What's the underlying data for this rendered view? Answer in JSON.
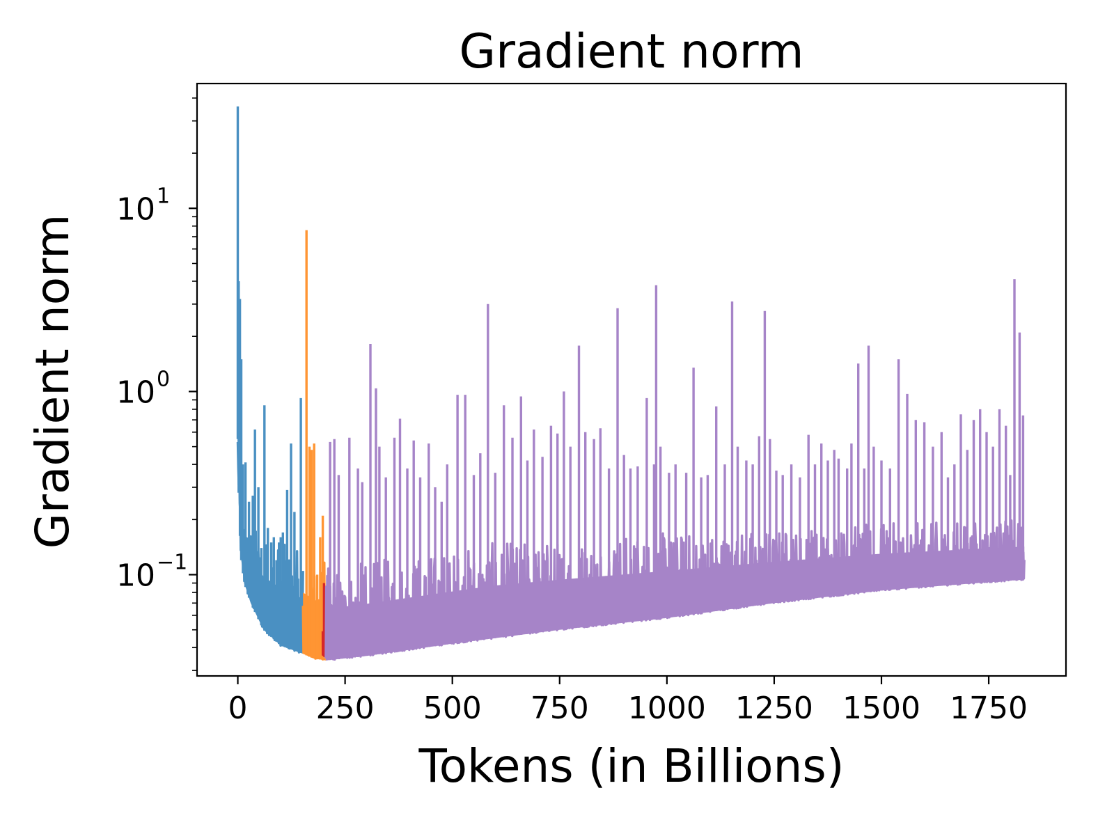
{
  "chart_data": {
    "type": "line",
    "title": "Gradient norm",
    "xlabel": "Tokens (in Billions)",
    "ylabel": "Gradient norm",
    "yscale": "log",
    "xlim": [
      -95,
      1930
    ],
    "ylim": [
      0.028,
      48
    ],
    "grid": false,
    "legend": "none",
    "x_ticks": [
      0,
      250,
      500,
      750,
      1000,
      1250,
      1500,
      1750
    ],
    "x_tick_labels": [
      "0",
      "250",
      "500",
      "750",
      "1000",
      "1250",
      "1500",
      "1750"
    ],
    "y_ticks": [
      {
        "value": 10,
        "base": "10",
        "exp": "1"
      },
      {
        "value": 1,
        "base": "10",
        "exp": "0"
      },
      {
        "value": 0.1,
        "base": "10",
        "exp": "−1"
      }
    ],
    "series": [
      {
        "color": "#4a90c2",
        "x_range": [
          0,
          152
        ],
        "floor": [
          [
            0,
            0.55
          ],
          [
            3,
            0.2
          ],
          [
            8,
            0.12
          ],
          [
            15,
            0.09
          ],
          [
            30,
            0.07
          ],
          [
            60,
            0.05
          ],
          [
            100,
            0.041
          ],
          [
            152,
            0.037
          ]
        ],
        "upper": [
          [
            0,
            0.5
          ],
          [
            20,
            0.2
          ],
          [
            60,
            0.17
          ],
          [
            152,
            0.13
          ]
        ],
        "spikes": [
          [
            0,
            36
          ],
          [
            2,
            4.0
          ],
          [
            5,
            3.2
          ],
          [
            8,
            1.5
          ],
          [
            12,
            0.4
          ],
          [
            18,
            0.41
          ],
          [
            26,
            0.25
          ],
          [
            35,
            0.27
          ],
          [
            40,
            0.62
          ],
          [
            48,
            0.3
          ],
          [
            55,
            0.14
          ],
          [
            62,
            0.84
          ],
          [
            70,
            0.18
          ],
          [
            78,
            0.15
          ],
          [
            84,
            0.16
          ],
          [
            90,
            0.12
          ],
          [
            96,
            0.15
          ],
          [
            100,
            0.16
          ],
          [
            105,
            0.17
          ],
          [
            110,
            0.12
          ],
          [
            115,
            0.29
          ],
          [
            124,
            0.52
          ],
          [
            132,
            0.22
          ],
          [
            140,
            0.07
          ],
          [
            147,
            0.92
          ]
        ]
      },
      {
        "color": "#ff9533",
        "x_range": [
          152,
          205
        ],
        "floor": [
          [
            152,
            0.037
          ],
          [
            175,
            0.035
          ],
          [
            205,
            0.034
          ]
        ],
        "upper": [
          [
            152,
            0.15
          ],
          [
            205,
            0.12
          ]
        ],
        "spikes": [
          [
            160,
            7.6
          ],
          [
            167,
            0.5
          ],
          [
            172,
            0.48
          ],
          [
            178,
            0.52
          ],
          [
            185,
            0.1
          ],
          [
            192,
            0.16
          ],
          [
            198,
            0.21
          ]
        ]
      },
      {
        "color": "#d62728",
        "x_range": [
          198,
          208
        ],
        "floor": [
          [
            198,
            0.036
          ],
          [
            208,
            0.036
          ]
        ],
        "upper": [
          [
            198,
            0.05
          ],
          [
            208,
            0.05
          ]
        ],
        "spikes": [
          [
            201,
            0.09
          ],
          [
            205,
            0.05
          ]
        ]
      },
      {
        "color": "#a684c8",
        "x_range": [
          205,
          1833
        ],
        "floor": [
          [
            205,
            0.034
          ],
          [
            300,
            0.036
          ],
          [
            500,
            0.042
          ],
          [
            750,
            0.05
          ],
          [
            1000,
            0.058
          ],
          [
            1250,
            0.07
          ],
          [
            1500,
            0.082
          ],
          [
            1750,
            0.091
          ],
          [
            1833,
            0.094
          ]
        ],
        "upper": [
          [
            205,
            0.11
          ],
          [
            600,
            0.15
          ],
          [
            1000,
            0.17
          ],
          [
            1500,
            0.19
          ],
          [
            1833,
            0.2
          ]
        ],
        "spikes": [
          [
            215,
            0.53
          ],
          [
            225,
            0.55
          ],
          [
            235,
            0.35
          ],
          [
            260,
            0.56
          ],
          [
            280,
            0.38
          ],
          [
            290,
            0.32
          ],
          [
            309,
            1.82
          ],
          [
            322,
            1.04
          ],
          [
            330,
            0.5
          ],
          [
            345,
            0.34
          ],
          [
            365,
            0.56
          ],
          [
            378,
            0.71
          ],
          [
            395,
            0.38
          ],
          [
            410,
            0.54
          ],
          [
            425,
            0.34
          ],
          [
            445,
            0.52
          ],
          [
            460,
            0.3
          ],
          [
            475,
            0.25
          ],
          [
            488,
            0.4
          ],
          [
            512,
            0.96
          ],
          [
            530,
            0.96
          ],
          [
            550,
            0.35
          ],
          [
            565,
            0.46
          ],
          [
            583,
            3.0
          ],
          [
            600,
            0.36
          ],
          [
            620,
            0.84
          ],
          [
            640,
            0.56
          ],
          [
            660,
            0.94
          ],
          [
            675,
            0.42
          ],
          [
            690,
            0.62
          ],
          [
            710,
            0.44
          ],
          [
            730,
            0.65
          ],
          [
            745,
            0.59
          ],
          [
            760,
            1.0
          ],
          [
            775,
            0.5
          ],
          [
            795,
            1.78
          ],
          [
            810,
            0.6
          ],
          [
            830,
            0.55
          ],
          [
            845,
            0.63
          ],
          [
            865,
            0.38
          ],
          [
            885,
            2.85
          ],
          [
            900,
            0.45
          ],
          [
            915,
            0.38
          ],
          [
            932,
            0.39
          ],
          [
            953,
            0.92
          ],
          [
            970,
            0.4
          ],
          [
            975,
            3.8
          ],
          [
            985,
            0.5
          ],
          [
            1005,
            0.36
          ],
          [
            1020,
            0.4
          ],
          [
            1045,
            0.36
          ],
          [
            1062,
            1.35
          ],
          [
            1080,
            0.34
          ],
          [
            1095,
            0.35
          ],
          [
            1115,
            0.83
          ],
          [
            1135,
            0.4
          ],
          [
            1152,
            3.1
          ],
          [
            1165,
            0.5
          ],
          [
            1185,
            0.42
          ],
          [
            1200,
            0.4
          ],
          [
            1215,
            0.57
          ],
          [
            1228,
            2.75
          ],
          [
            1240,
            0.55
          ],
          [
            1255,
            0.37
          ],
          [
            1270,
            0.35
          ],
          [
            1290,
            0.4
          ],
          [
            1310,
            0.34
          ],
          [
            1330,
            0.58
          ],
          [
            1345,
            0.4
          ],
          [
            1360,
            0.52
          ],
          [
            1375,
            0.42
          ],
          [
            1390,
            0.48
          ],
          [
            1400,
            0.43
          ],
          [
            1420,
            0.38
          ],
          [
            1430,
            0.52
          ],
          [
            1446,
            1.42
          ],
          [
            1460,
            0.38
          ],
          [
            1470,
            1.78
          ],
          [
            1482,
            0.5
          ],
          [
            1500,
            0.42
          ],
          [
            1520,
            0.38
          ],
          [
            1540,
            1.5
          ],
          [
            1560,
            0.97
          ],
          [
            1580,
            0.7
          ],
          [
            1600,
            0.68
          ],
          [
            1620,
            0.5
          ],
          [
            1640,
            0.6
          ],
          [
            1655,
            0.34
          ],
          [
            1670,
            0.4
          ],
          [
            1685,
            0.75
          ],
          [
            1700,
            0.48
          ],
          [
            1715,
            0.7
          ],
          [
            1730,
            0.8
          ],
          [
            1745,
            0.6
          ],
          [
            1760,
            0.5
          ],
          [
            1775,
            0.8
          ],
          [
            1790,
            0.65
          ],
          [
            1800,
            0.35
          ],
          [
            1810,
            4.1
          ],
          [
            1822,
            2.1
          ],
          [
            1830,
            0.74
          ]
        ]
      }
    ]
  }
}
